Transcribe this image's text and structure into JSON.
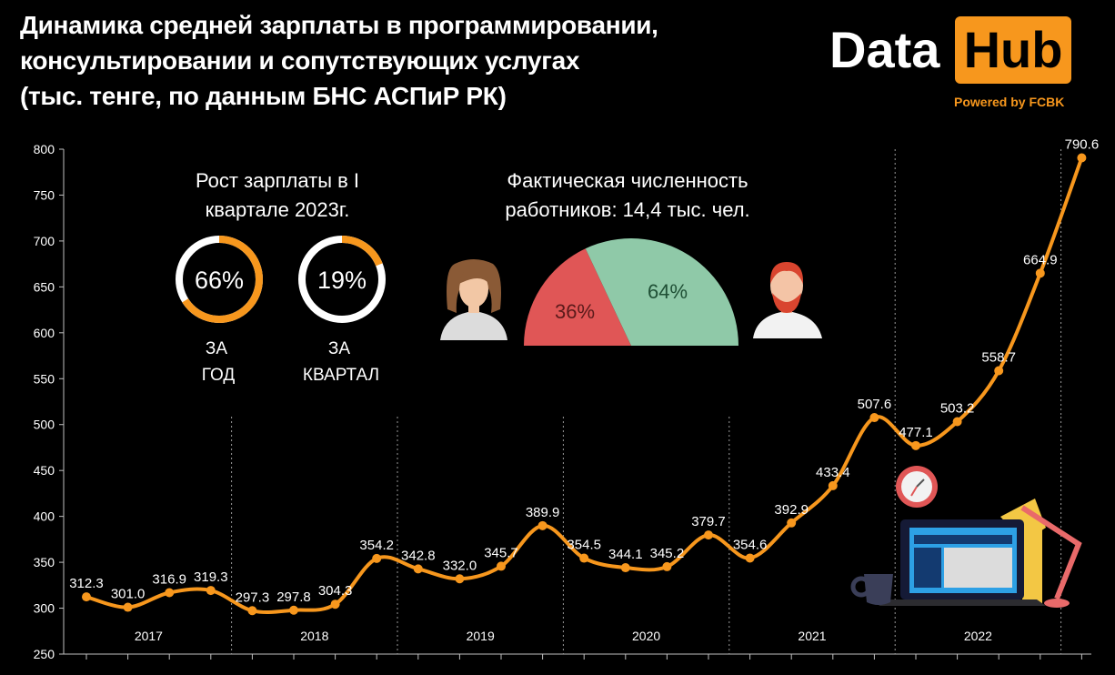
{
  "header": {
    "title_lines": [
      "Динамика средней зарплаты в программировании,",
      "консультировании и сопутствующих услугах",
      "(тыс. тенге, по данным БНС АСПиР РК)"
    ]
  },
  "logo": {
    "data": "Data",
    "hub": "Hub",
    "powered": "Powered by FCBK"
  },
  "colors": {
    "accent": "#f7971d",
    "female": "#e05656",
    "male": "#8fc9a8",
    "background": "#000000"
  },
  "growth": {
    "title_lines": [
      "Рост зарплаты в I",
      "квартале 2023г."
    ],
    "year": {
      "value": 0.66,
      "label": "66%",
      "caption_lines": [
        "ЗА",
        "ГОД"
      ]
    },
    "quarter": {
      "value": 0.19,
      "label": "19%",
      "caption_lines": [
        "ЗА",
        "КВАРТАЛ"
      ]
    }
  },
  "workers": {
    "title_lines": [
      "Фактическая численность",
      "работников:  14,4 тыс. чел."
    ],
    "female": {
      "value": 36,
      "label": "36%",
      "icon": "woman-avatar-icon"
    },
    "male": {
      "value": 64,
      "label": "64%",
      "icon": "man-avatar-icon"
    }
  },
  "decor_icons": [
    "clock-icon",
    "coffee-cup-icon",
    "laptop-icon",
    "desk-lamp-icon"
  ],
  "chart_data": {
    "type": "line",
    "title": "Динамика средней зарплаты в программировании, консультировании и сопутствующих услугах (тыс. тенге, по данным БНС АСПиР РК)",
    "xlabel": "",
    "ylabel": "",
    "ylim": [
      250,
      800
    ],
    "yticks": [
      250,
      300,
      350,
      400,
      450,
      500,
      550,
      600,
      650,
      700,
      750,
      800
    ],
    "years": [
      "2017",
      "2018",
      "2019",
      "2020",
      "2021",
      "2022"
    ],
    "series": [
      {
        "name": "Средняя зарплата",
        "values": [
          312.3,
          301.0,
          316.9,
          319.3,
          297.3,
          297.8,
          304.3,
          354.2,
          342.8,
          332.0,
          345.7,
          389.9,
          354.5,
          344.1,
          345.2,
          379.7,
          354.6,
          392.9,
          433.4,
          507.6,
          477.1,
          503.2,
          558.7,
          664.9,
          790.6
        ],
        "labels": [
          "312.3",
          "301.0",
          "316.9",
          "319.3",
          "297.3",
          "297.8",
          "304.3",
          "354.2",
          "342.8",
          "332.0",
          "345.7",
          "389.9",
          "354.5",
          "344.1",
          "345.2",
          "379.7",
          "354.6",
          "392.9",
          "433.4",
          "507.6",
          "477.1",
          "503.2",
          "558.7",
          "664.9",
          "790.6"
        ]
      }
    ]
  }
}
